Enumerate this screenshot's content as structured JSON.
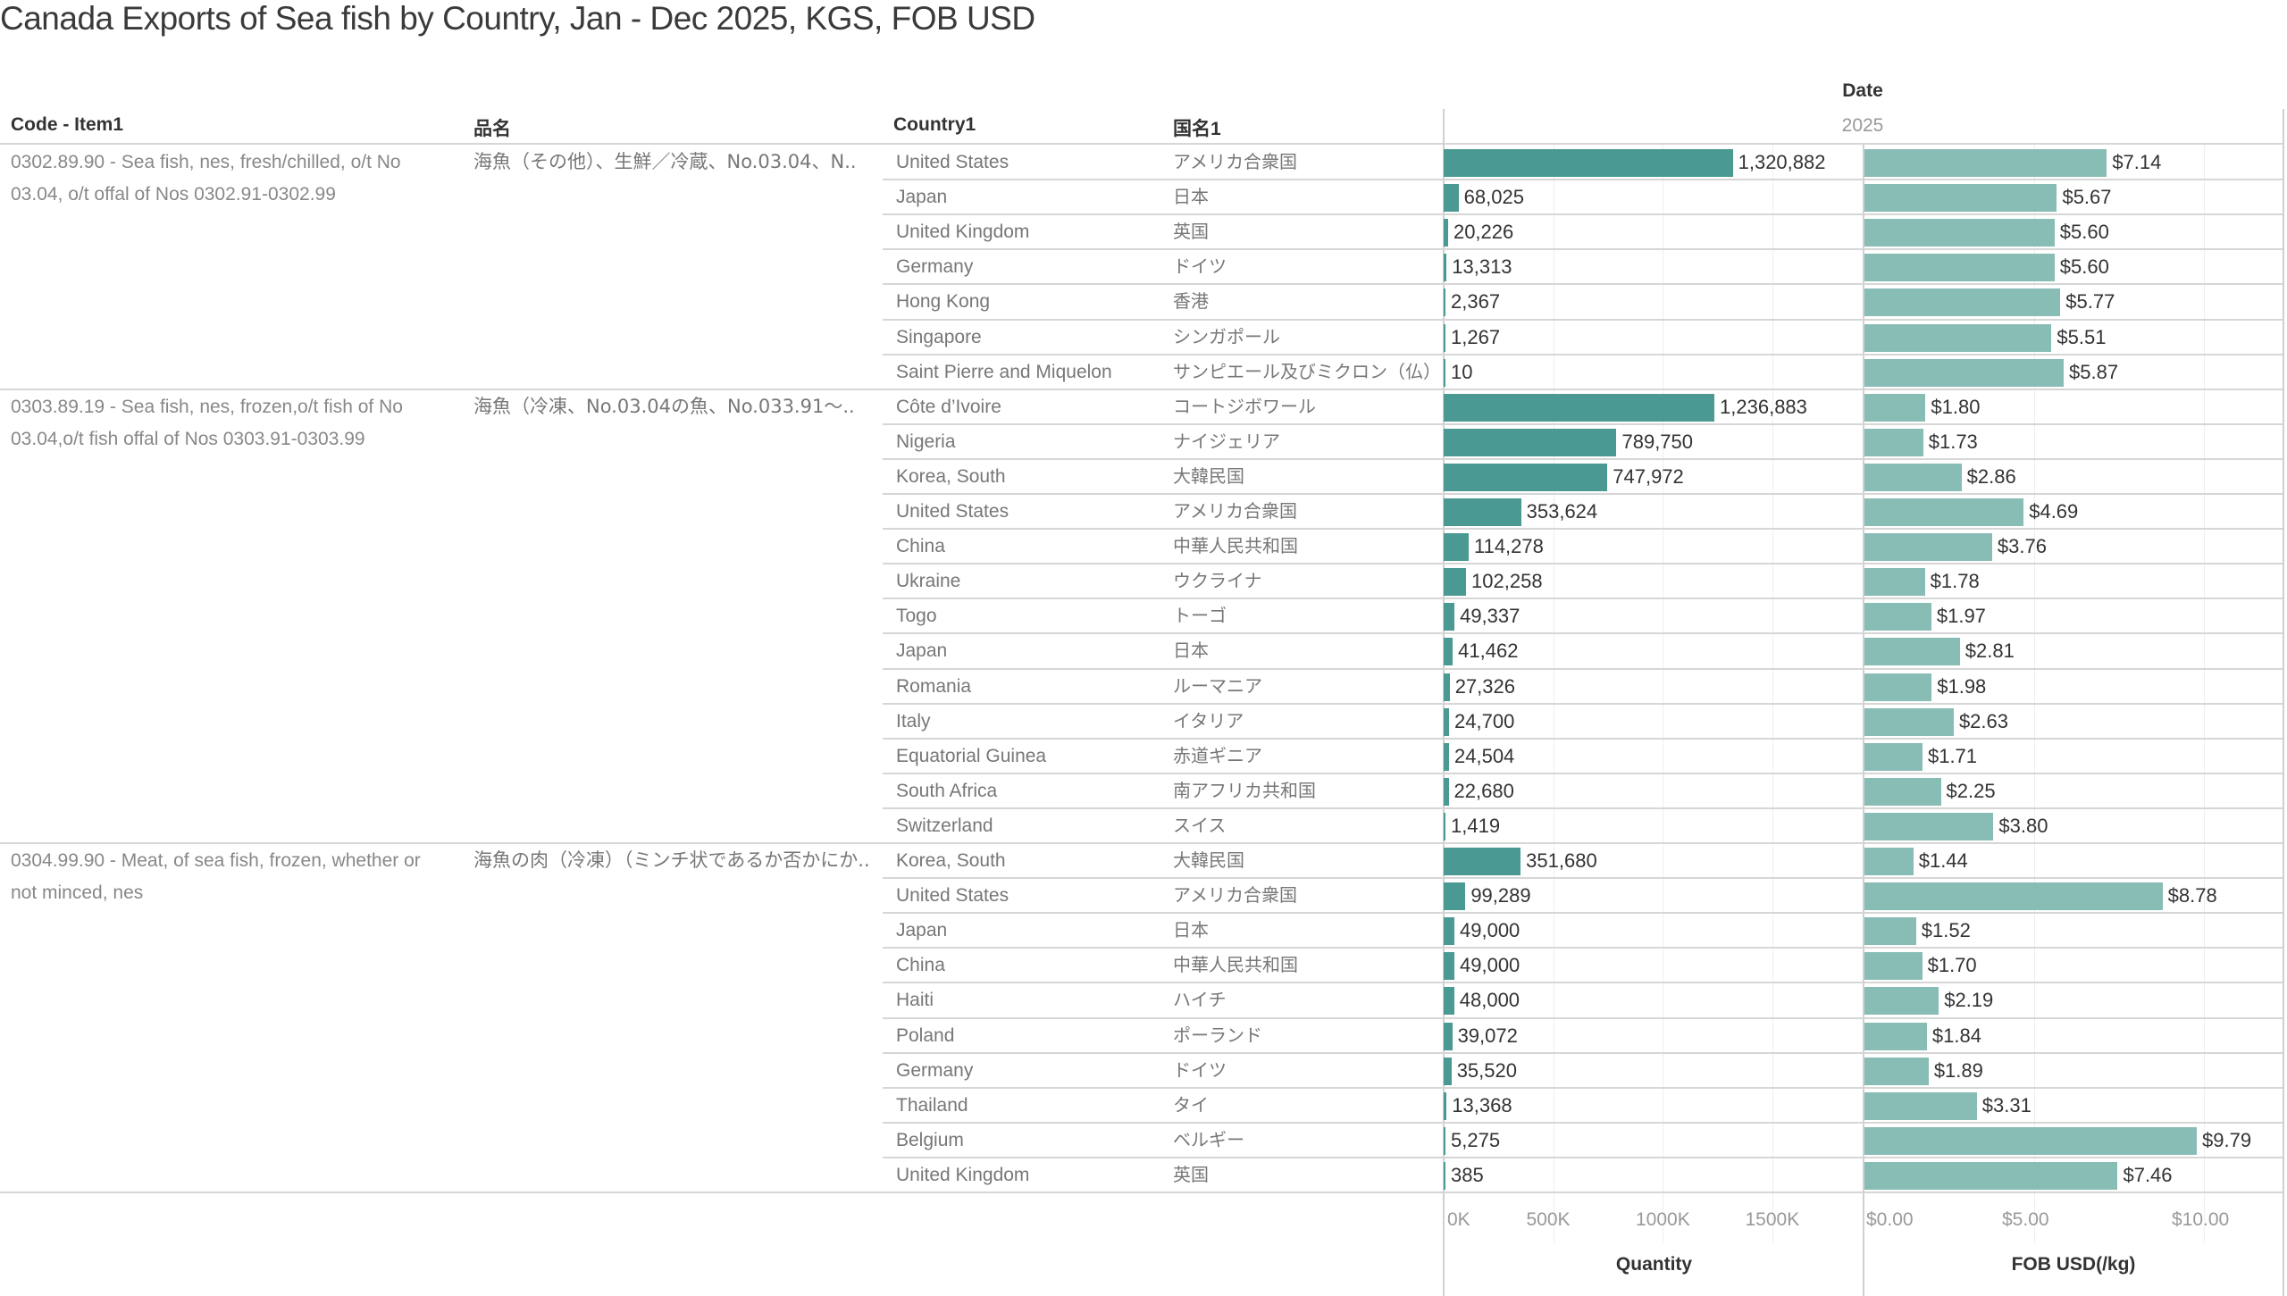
{
  "title": "Canada Exports of Sea fish by Country, Jan - Dec 2025, KGS, FOB USD",
  "headers": {
    "code_item": "Code - Item1",
    "jp_item": "品名",
    "country": "Country1",
    "jp_country": "国名1",
    "date": "Date",
    "year": "2025"
  },
  "colors": {
    "quantity_bar": "#4a9992",
    "fob_bar": "#88bdb5",
    "grid": "#eeeeee",
    "divider": "#d6d6d6"
  },
  "chart_data": {
    "type": "bar",
    "title": "Canada Exports of Sea fish by Country, Jan - Dec 2025, KGS, FOB USD",
    "orientation": "horizontal",
    "panels": [
      {
        "key": "quantity",
        "xlabel": "Quantity",
        "xlim": [
          0,
          1914000
        ],
        "ticks": [
          0,
          500000,
          1000000,
          1500000
        ],
        "tick_labels": [
          "0K",
          "500K",
          "1000K",
          "1500K"
        ],
        "grid": true
      },
      {
        "key": "fob",
        "xlabel": "FOB USD(/kg)",
        "xlim": [
          0,
          12.3
        ],
        "ticks": [
          0,
          5,
          10
        ],
        "tick_labels": [
          "$0.00",
          "$5.00",
          "$10.00"
        ],
        "grid": true
      }
    ],
    "groups": [
      {
        "code_item": "0302.89.90 - Sea fish, nes, fresh/chilled, o/t No 03.04, o/t offal of Nos 0302.91-0302.99",
        "jp_item": "海魚（その他）、生鮮／冷蔵、No.03.04、N..",
        "rows": [
          {
            "country": "United States",
            "jp_country": "アメリカ合衆国",
            "quantity": 1320882,
            "quantity_label": "1,320,882",
            "fob": 7.14,
            "fob_label": "$7.14"
          },
          {
            "country": "Japan",
            "jp_country": "日本",
            "quantity": 68025,
            "quantity_label": "68,025",
            "fob": 5.67,
            "fob_label": "$5.67"
          },
          {
            "country": "United Kingdom",
            "jp_country": "英国",
            "quantity": 20226,
            "quantity_label": "20,226",
            "fob": 5.6,
            "fob_label": "$5.60"
          },
          {
            "country": "Germany",
            "jp_country": "ドイツ",
            "quantity": 13313,
            "quantity_label": "13,313",
            "fob": 5.6,
            "fob_label": "$5.60"
          },
          {
            "country": "Hong Kong",
            "jp_country": "香港",
            "quantity": 2367,
            "quantity_label": "2,367",
            "fob": 5.77,
            "fob_label": "$5.77"
          },
          {
            "country": "Singapore",
            "jp_country": "シンガポール",
            "quantity": 1267,
            "quantity_label": "1,267",
            "fob": 5.51,
            "fob_label": "$5.51"
          },
          {
            "country": "Saint Pierre and Miquelon",
            "jp_country": "サンピエール及びミクロン（仏）",
            "quantity": 10,
            "quantity_label": "10",
            "fob": 5.87,
            "fob_label": "$5.87"
          }
        ]
      },
      {
        "code_item": "0303.89.19 - Sea fish, nes, frozen,o/t fish of No 03.04,o/t fish offal of Nos 0303.91-0303.99",
        "jp_item": "海魚（冷凍、No.03.04の魚、No.033.91～..",
        "rows": [
          {
            "country": "Côte d’Ivoire",
            "jp_country": "コートジボワール",
            "quantity": 1236883,
            "quantity_label": "1,236,883",
            "fob": 1.8,
            "fob_label": "$1.80"
          },
          {
            "country": "Nigeria",
            "jp_country": "ナイジェリア",
            "quantity": 789750,
            "quantity_label": "789,750",
            "fob": 1.73,
            "fob_label": "$1.73"
          },
          {
            "country": "Korea, South",
            "jp_country": "大韓民国",
            "quantity": 747972,
            "quantity_label": "747,972",
            "fob": 2.86,
            "fob_label": "$2.86"
          },
          {
            "country": "United States",
            "jp_country": "アメリカ合衆国",
            "quantity": 353624,
            "quantity_label": "353,624",
            "fob": 4.69,
            "fob_label": "$4.69"
          },
          {
            "country": "China",
            "jp_country": "中華人民共和国",
            "quantity": 114278,
            "quantity_label": "114,278",
            "fob": 3.76,
            "fob_label": "$3.76"
          },
          {
            "country": "Ukraine",
            "jp_country": "ウクライナ",
            "quantity": 102258,
            "quantity_label": "102,258",
            "fob": 1.78,
            "fob_label": "$1.78"
          },
          {
            "country": "Togo",
            "jp_country": "トーゴ",
            "quantity": 49337,
            "quantity_label": "49,337",
            "fob": 1.97,
            "fob_label": "$1.97"
          },
          {
            "country": "Japan",
            "jp_country": "日本",
            "quantity": 41462,
            "quantity_label": "41,462",
            "fob": 2.81,
            "fob_label": "$2.81"
          },
          {
            "country": "Romania",
            "jp_country": "ルーマニア",
            "quantity": 27326,
            "quantity_label": "27,326",
            "fob": 1.98,
            "fob_label": "$1.98"
          },
          {
            "country": "Italy",
            "jp_country": "イタリア",
            "quantity": 24700,
            "quantity_label": "24,700",
            "fob": 2.63,
            "fob_label": "$2.63"
          },
          {
            "country": "Equatorial Guinea",
            "jp_country": "赤道ギニア",
            "quantity": 24504,
            "quantity_label": "24,504",
            "fob": 1.71,
            "fob_label": "$1.71"
          },
          {
            "country": "South Africa",
            "jp_country": "南アフリカ共和国",
            "quantity": 22680,
            "quantity_label": "22,680",
            "fob": 2.25,
            "fob_label": "$2.25"
          },
          {
            "country": "Switzerland",
            "jp_country": "スイス",
            "quantity": 1419,
            "quantity_label": "1,419",
            "fob": 3.8,
            "fob_label": "$3.80"
          }
        ]
      },
      {
        "code_item": "0304.99.90 - Meat, of sea fish, frozen, whether or not minced, nes",
        "jp_item": "海魚の肉（冷凍）（ミンチ状であるか否かにか..",
        "rows": [
          {
            "country": "Korea, South",
            "jp_country": "大韓民国",
            "quantity": 351680,
            "quantity_label": "351,680",
            "fob": 1.44,
            "fob_label": "$1.44"
          },
          {
            "country": "United States",
            "jp_country": "アメリカ合衆国",
            "quantity": 99289,
            "quantity_label": "99,289",
            "fob": 8.78,
            "fob_label": "$8.78"
          },
          {
            "country": "Japan",
            "jp_country": "日本",
            "quantity": 49000,
            "quantity_label": "49,000",
            "fob": 1.52,
            "fob_label": "$1.52"
          },
          {
            "country": "China",
            "jp_country": "中華人民共和国",
            "quantity": 49000,
            "quantity_label": "49,000",
            "fob": 1.7,
            "fob_label": "$1.70"
          },
          {
            "country": "Haiti",
            "jp_country": "ハイチ",
            "quantity": 48000,
            "quantity_label": "48,000",
            "fob": 2.19,
            "fob_label": "$2.19"
          },
          {
            "country": "Poland",
            "jp_country": "ポーランド",
            "quantity": 39072,
            "quantity_label": "39,072",
            "fob": 1.84,
            "fob_label": "$1.84"
          },
          {
            "country": "Germany",
            "jp_country": "ドイツ",
            "quantity": 35520,
            "quantity_label": "35,520",
            "fob": 1.89,
            "fob_label": "$1.89"
          },
          {
            "country": "Thailand",
            "jp_country": "タイ",
            "quantity": 13368,
            "quantity_label": "13,368",
            "fob": 3.31,
            "fob_label": "$3.31"
          },
          {
            "country": "Belgium",
            "jp_country": "ベルギー",
            "quantity": 5275,
            "quantity_label": "5,275",
            "fob": 9.79,
            "fob_label": "$9.79"
          },
          {
            "country": "United Kingdom",
            "jp_country": "英国",
            "quantity": 385,
            "quantity_label": "385",
            "fob": 7.46,
            "fob_label": "$7.46"
          }
        ]
      }
    ]
  }
}
